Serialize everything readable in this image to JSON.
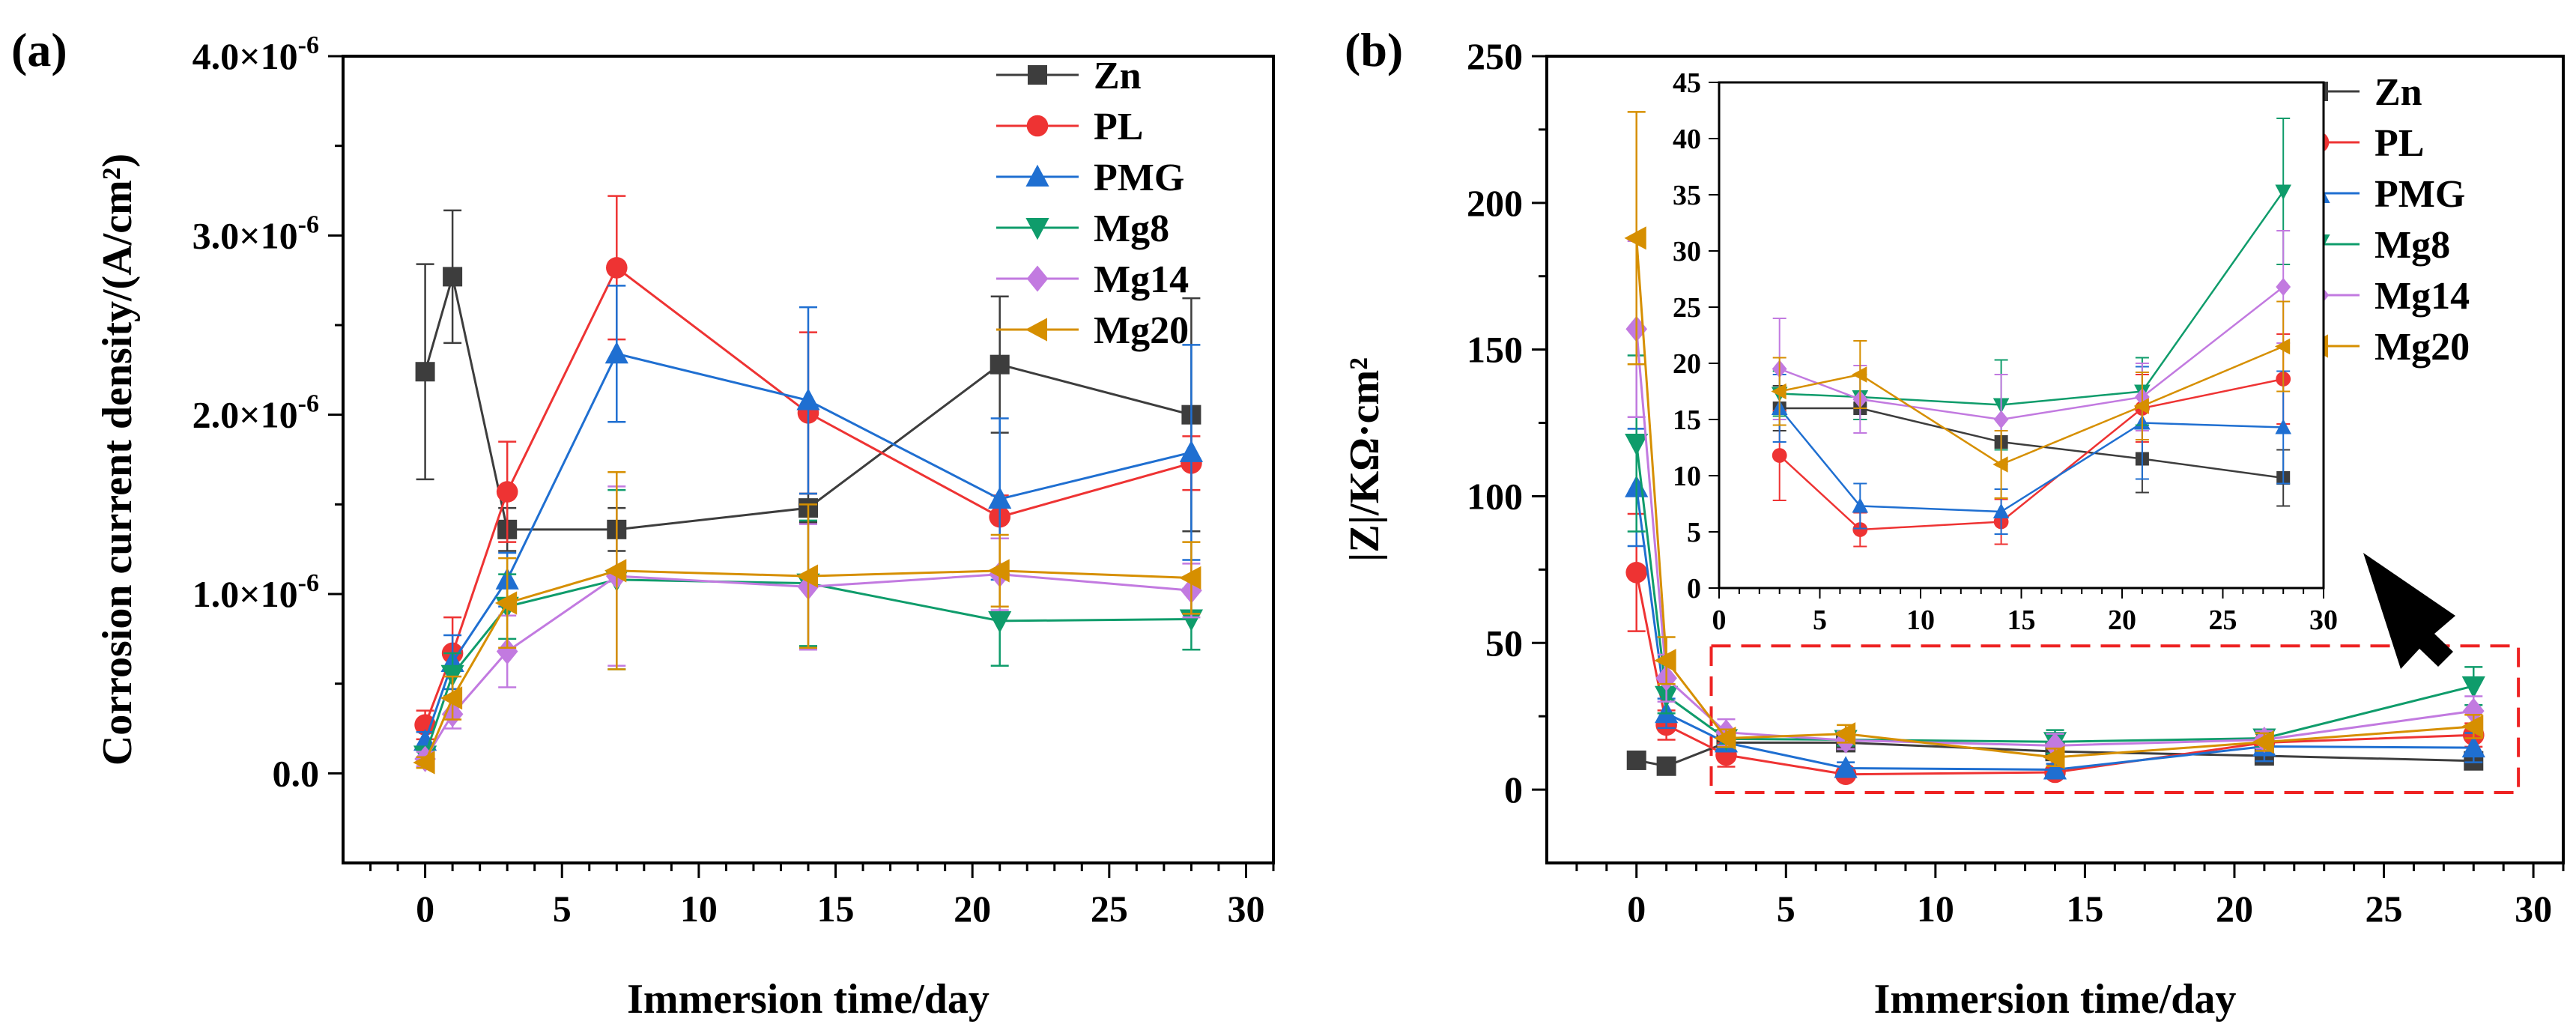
{
  "chart_data": [
    {
      "panel_label": "(a)",
      "type": "line",
      "xlabel": "Immersion time/day",
      "ylabel": "Corrosion current density/(A/cm²)",
      "xlim": [
        -3,
        31
      ],
      "ylim": [
        -0.5,
        4.0
      ],
      "xticks": [
        0,
        5,
        10,
        15,
        20,
        25,
        30
      ],
      "yticks": [
        0.0,
        1.0,
        2.0,
        3.0,
        4.0
      ],
      "ytick_labels": [
        "0.0",
        "1.0×10⁻⁶",
        "2.0×10⁻⁶",
        "3.0×10⁻⁶",
        "4.0×10⁻⁶"
      ],
      "y_unit_note": "values in units of 10⁻⁶ A/cm²",
      "x": [
        0,
        1,
        3,
        7,
        14,
        21,
        28
      ],
      "legend_position": "top-right",
      "series": [
        {
          "name": "Zn",
          "color": "#3d3d3d",
          "marker": "square",
          "values": [
            2.24,
            2.77,
            1.36,
            1.36,
            1.48,
            2.28,
            2.0
          ],
          "errors": [
            0.6,
            0.37,
            0.12,
            0.12,
            0.08,
            0.38,
            0.65
          ]
        },
        {
          "name": "PL",
          "color": "#ee3333",
          "marker": "circle",
          "values": [
            0.27,
            0.67,
            1.57,
            2.82,
            2.01,
            1.43,
            1.73
          ],
          "errors": [
            0.08,
            0.2,
            0.28,
            0.4,
            0.45,
            0.12,
            0.15
          ]
        },
        {
          "name": "PMG",
          "color": "#1f6fd1",
          "marker": "triangle-up",
          "values": [
            0.18,
            0.62,
            1.08,
            2.34,
            2.08,
            1.53,
            1.79
          ],
          "errors": [
            0.05,
            0.15,
            0.15,
            0.38,
            0.52,
            0.45,
            0.6
          ]
        },
        {
          "name": "Mg8",
          "color": "#0f9c6b",
          "marker": "triangle-down",
          "values": [
            0.1,
            0.55,
            0.93,
            1.08,
            1.06,
            0.85,
            0.86
          ],
          "errors": [
            0.04,
            0.12,
            0.18,
            0.5,
            0.35,
            0.25,
            0.17
          ]
        },
        {
          "name": "Mg14",
          "color": "#c27ae0",
          "marker": "diamond",
          "values": [
            0.08,
            0.33,
            0.68,
            1.1,
            1.04,
            1.11,
            1.02
          ],
          "errors": [
            0.04,
            0.08,
            0.2,
            0.5,
            0.35,
            0.2,
            0.15
          ]
        },
        {
          "name": "Mg20",
          "color": "#d68f00",
          "marker": "triangle-left",
          "values": [
            0.06,
            0.42,
            0.95,
            1.13,
            1.1,
            1.13,
            1.09
          ],
          "errors": [
            0.03,
            0.12,
            0.25,
            0.55,
            0.4,
            0.2,
            0.2
          ]
        }
      ]
    },
    {
      "panel_label": "(b)",
      "type": "line",
      "xlabel": "Immersion time/day",
      "ylabel": "|Z|/KΩ·cm²",
      "xlim": [
        -3,
        31
      ],
      "ylim": [
        -25,
        250
      ],
      "xticks": [
        0,
        5,
        10,
        15,
        20,
        25,
        30
      ],
      "yticks": [
        0,
        50,
        100,
        150,
        200,
        250
      ],
      "x": [
        0,
        1,
        3,
        7,
        14,
        21,
        28
      ],
      "legend_position": "top-right",
      "series": [
        {
          "name": "Zn",
          "color": "#3d3d3d",
          "marker": "square",
          "values": [
            10,
            8,
            16,
            16,
            13,
            11.5,
            9.8
          ],
          "errors": [
            0,
            0,
            2,
            1,
            2,
            3,
            2.5
          ]
        },
        {
          "name": "PL",
          "color": "#ee3333",
          "marker": "circle",
          "values": [
            74,
            22,
            11.8,
            5.2,
            5.9,
            16,
            18.6
          ],
          "errors": [
            20,
            5,
            4,
            1.5,
            2,
            3,
            4
          ]
        },
        {
          "name": "PMG",
          "color": "#1f6fd1",
          "marker": "triangle-up",
          "values": [
            103,
            26,
            16,
            7.3,
            6.8,
            14.7,
            14.3
          ],
          "errors": [
            20,
            5,
            3,
            2,
            2,
            5,
            5
          ]
        },
        {
          "name": "Mg8",
          "color": "#0f9c6b",
          "marker": "triangle-down",
          "values": [
            118,
            32,
            17.3,
            17,
            16.3,
            17.5,
            35.3
          ],
          "errors": [
            30,
            6,
            2,
            2,
            4,
            3,
            6.5
          ]
        },
        {
          "name": "Mg14",
          "color": "#c27ae0",
          "marker": "diamond",
          "values": [
            157,
            38,
            19.5,
            16.8,
            15,
            17,
            26.8
          ],
          "errors": [
            30,
            8,
            4.5,
            3,
            4,
            3,
            5
          ]
        },
        {
          "name": "Mg20",
          "color": "#d68f00",
          "marker": "triangle-left",
          "values": [
            188,
            44,
            17.5,
            19,
            11,
            16.2,
            21.5
          ],
          "errors": [
            43,
            8,
            3,
            3,
            3,
            3,
            4
          ]
        }
      ],
      "inset": {
        "xlim": [
          0,
          30
        ],
        "ylim": [
          0,
          45
        ],
        "xticks": [
          0,
          5,
          10,
          15,
          20,
          25,
          30
        ],
        "yticks": [
          0,
          5,
          10,
          15,
          20,
          25,
          30,
          35,
          40,
          45
        ],
        "x": [
          3,
          7,
          14,
          21,
          28
        ],
        "shows": "zoom of the region marked by the red dashed rectangle, days 3–28"
      }
    }
  ]
}
